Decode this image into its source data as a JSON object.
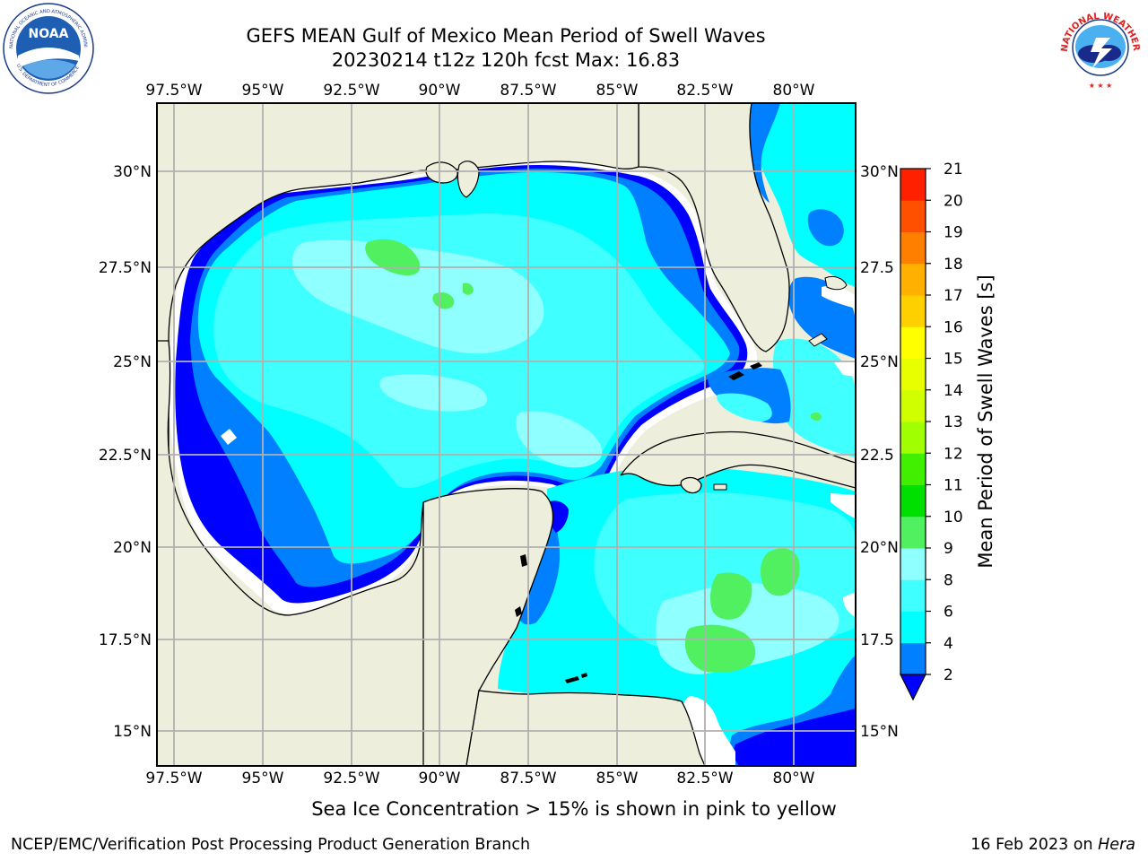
{
  "header": {
    "title_line1": "GEFS MEAN Gulf of Mexico Mean Period of Swell Waves",
    "title_line2": "20230214 t12z 120h fcst   Max: 16.83"
  },
  "logos": {
    "left": "noaa-logo",
    "left_text": "NOAA",
    "left_ring_text": "NATIONAL OCEANIC AND ATMOSPHERIC ADMINISTRATION",
    "left_ring_bottom": "U.S. DEPARTMENT OF COMMERCE",
    "right": "nws-logo",
    "right_ring_text": "NATIONAL WEATHER SERVICE"
  },
  "map": {
    "lon_labels": [
      "97.5°W",
      "95°W",
      "92.5°W",
      "90°W",
      "87.5°W",
      "85°W",
      "82.5°W",
      "80°W"
    ],
    "lat_labels": [
      "30°N",
      "27.5°N",
      "25°N",
      "22.5°N",
      "20°N",
      "17.5°N",
      "15°N"
    ],
    "lat_labels_right": [
      "30°N",
      "27.5",
      "25°N",
      "22.5",
      "20°N",
      "17.5",
      "15°N"
    ],
    "extent": {
      "lon": [
        -98,
        -78.3
      ],
      "lat": [
        14,
        31.8
      ]
    },
    "colors": {
      "land": "#eeeedc",
      "ocean_low": "#0000ff",
      "ocean_mid": "#0080ff",
      "ocean_main": "#00ffff",
      "ocean_light": "#40ffff",
      "ocean_pale": "#90ffff",
      "green": "#50f060",
      "ice_yellow": "#e0ff00",
      "gridline": "#b0b0b0"
    }
  },
  "colorbar": {
    "label": "Mean Period of Swell Waves [s]",
    "ticks": [
      "2",
      "4",
      "6",
      "8",
      "9",
      "10",
      "11",
      "12",
      "13",
      "14",
      "15",
      "16",
      "17",
      "18",
      "19",
      "20",
      "21"
    ],
    "colors": [
      "#0080ff",
      "#00ffff",
      "#40ffff",
      "#90ffff",
      "#50f060",
      "#00e000",
      "#40f000",
      "#a0ff00",
      "#d0ff00",
      "#e8ff00",
      "#ffff00",
      "#ffd000",
      "#ffb000",
      "#ff8000",
      "#ff5000",
      "#ff2000"
    ],
    "extend_color": "#0000ff"
  },
  "footer": {
    "note": "Sea Ice Concentration > 15% is shown in pink to yellow",
    "credit": "NCEP/EMC/Verification Post Processing Product Generation Branch",
    "date_prefix": "16 Feb 2023 on ",
    "machine": "Hera"
  }
}
